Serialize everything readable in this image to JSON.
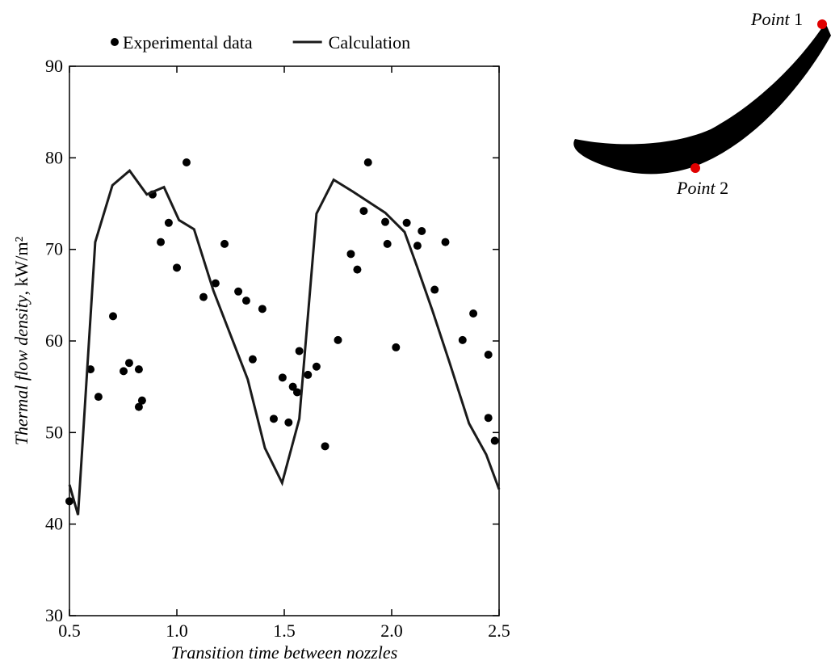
{
  "chart_data": {
    "type": "scatter-line",
    "x_label": "Transition time between nozzles",
    "y_label": "Thermal flow density",
    "y_unit": ", kW/m²",
    "xlim": [
      0.5,
      2.5
    ],
    "xticks": [
      0.5,
      {
        "value": 1.0,
        "label": "1.0"
      },
      1.5,
      {
        "value": 2.0,
        "label": "2.0"
      },
      2.5
    ],
    "ylim": [
      30,
      90
    ],
    "yticks": [
      30,
      40,
      50,
      60,
      70,
      80,
      90
    ],
    "series": [
      {
        "name": "Experimental data",
        "type": "scatter",
        "color": "#000000",
        "x": [
          0.5,
          0.598,
          0.635,
          0.703,
          0.752,
          0.778,
          0.823,
          0.823,
          0.838,
          0.887,
          0.925,
          0.962,
          1.0,
          1.045,
          1.124,
          1.18,
          1.222,
          1.286,
          1.323,
          1.353,
          1.398,
          1.451,
          1.492,
          1.52,
          1.54,
          1.56,
          1.57,
          1.61,
          1.65,
          1.69,
          1.75,
          1.81,
          1.84,
          1.87,
          1.89,
          1.97,
          1.98,
          2.02,
          2.07,
          2.12,
          2.14,
          2.2,
          2.25,
          2.33,
          2.38,
          2.45,
          2.45,
          2.48
        ],
        "values": [
          42.5,
          56.9,
          53.9,
          62.7,
          56.7,
          57.6,
          56.9,
          52.8,
          53.5,
          76.0,
          70.8,
          72.9,
          68.0,
          79.5,
          64.8,
          66.3,
          70.6,
          65.4,
          64.4,
          58.0,
          63.5,
          51.5,
          56.0,
          51.1,
          55.0,
          54.4,
          58.9,
          56.3,
          57.2,
          48.5,
          60.1,
          69.5,
          67.8,
          74.2,
          79.5,
          73.0,
          70.6,
          59.3,
          72.9,
          70.4,
          72.0,
          65.6,
          70.8,
          60.1,
          63.0,
          58.5,
          51.6,
          49.1
        ]
      },
      {
        "name": "Calculation",
        "type": "line",
        "color": "#1a1a1a",
        "x": [
          0.5,
          0.54,
          0.62,
          0.7,
          0.78,
          0.86,
          0.94,
          1.01,
          1.08,
          1.17,
          1.33,
          1.41,
          1.49,
          1.57,
          1.65,
          1.73,
          1.82,
          1.97,
          2.06,
          2.12,
          2.19,
          2.27,
          2.36,
          2.44,
          2.5
        ],
        "values": [
          44.3,
          41.0,
          70.8,
          77.0,
          78.6,
          76.0,
          76.8,
          73.2,
          72.2,
          65.5,
          55.8,
          48.3,
          44.5,
          51.5,
          73.9,
          77.6,
          76.3,
          74.0,
          71.9,
          68.0,
          63.3,
          57.6,
          51.0,
          47.6,
          43.8
        ]
      }
    ]
  },
  "inset": {
    "points": [
      {
        "word": "Point",
        "number": "1"
      },
      {
        "word": "Point",
        "number": "2"
      }
    ]
  }
}
